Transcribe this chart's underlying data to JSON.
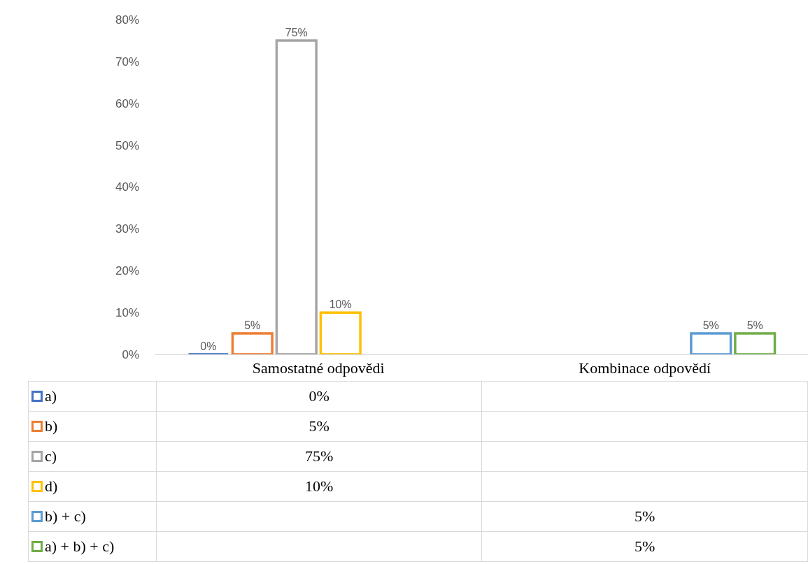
{
  "chart_data": {
    "type": "bar",
    "categories": [
      "Samostatné odpovědi",
      "Kombinace odpovědí"
    ],
    "series": [
      {
        "name": "a)",
        "color": "#4472c4",
        "values": [
          0,
          null
        ],
        "value_labels": [
          "0%",
          null
        ]
      },
      {
        "name": "b)",
        "color": "#ed7d31",
        "values": [
          5,
          null
        ],
        "value_labels": [
          "5%",
          null
        ]
      },
      {
        "name": "c)",
        "color": "#a5a5a5",
        "values": [
          75,
          null
        ],
        "value_labels": [
          "75%",
          null
        ]
      },
      {
        "name": "d)",
        "color": "#ffc000",
        "values": [
          10,
          null
        ],
        "value_labels": [
          "10%",
          null
        ]
      },
      {
        "name": "b) + c)",
        "color": "#5b9bd5",
        "values": [
          null,
          5
        ],
        "value_labels": [
          null,
          "5%"
        ]
      },
      {
        "name": "a) + b) + c)",
        "color": "#70ad47",
        "values": [
          null,
          5
        ],
        "value_labels": [
          null,
          "5%"
        ]
      }
    ],
    "ylim": [
      0,
      80
    ],
    "yticks": [
      {
        "value": 0,
        "label": "0%"
      },
      {
        "value": 10,
        "label": "10%"
      },
      {
        "value": 20,
        "label": "20%"
      },
      {
        "value": 30,
        "label": "30%"
      },
      {
        "value": 40,
        "label": "40%"
      },
      {
        "value": 50,
        "label": "50%"
      },
      {
        "value": 60,
        "label": "60%"
      },
      {
        "value": 70,
        "label": "70%"
      },
      {
        "value": 80,
        "label": "80%"
      }
    ],
    "grid": false,
    "legend": "bottom"
  }
}
